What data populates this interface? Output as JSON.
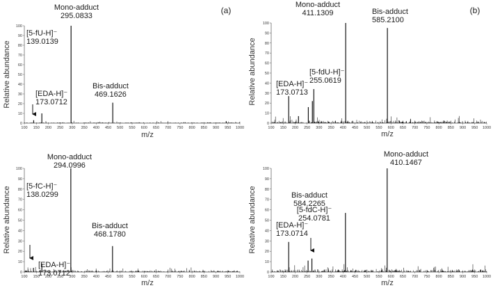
{
  "chart_data": [
    {
      "type": "line",
      "panel_label": "(a)",
      "ylabel": "Relative abundance",
      "xlabel": "m/z",
      "xlim": [
        100,
        1000
      ],
      "ylim": [
        0,
        100
      ],
      "x_ticks": [
        "100",
        "150",
        "200",
        "250",
        "300",
        "350",
        "400",
        "450",
        "500",
        "550",
        "600",
        "650",
        "700",
        "750",
        "800",
        "850",
        "900",
        "950",
        "1000"
      ],
      "y_ticks": [
        "0",
        "10",
        "20",
        "30",
        "40",
        "50",
        "60",
        "70",
        "80",
        "90",
        "100"
      ],
      "peaks": [
        {
          "x": 139.0,
          "y": 3
        },
        {
          "x": 173.1,
          "y": 10
        },
        {
          "x": 295.1,
          "y": 100
        },
        {
          "x": 469.2,
          "y": 21
        },
        {
          "x": 943.0,
          "y": 2
        }
      ],
      "annotations": [
        {
          "name": "Mono-adduct",
          "value": "295.0833"
        },
        {
          "name": "Bis-adduct",
          "value": "469.1626"
        },
        {
          "name": "[5-fU-H]⁻",
          "value": "139.0139"
        },
        {
          "name": "[EDA-H]⁻",
          "value": "173.0712"
        }
      ]
    },
    {
      "type": "line",
      "panel_label": "(b)",
      "ylabel": "Relative abundance",
      "xlabel": "m/z",
      "xlim": [
        100,
        1000
      ],
      "ylim": [
        0,
        100
      ],
      "x_ticks": [
        "100",
        "150",
        "200",
        "250",
        "300",
        "350",
        "400",
        "450",
        "500",
        "550",
        "600",
        "650",
        "700",
        "750",
        "800",
        "850",
        "900",
        "950",
        "1000"
      ],
      "y_ticks": [
        "0",
        "10",
        "20",
        "30",
        "40",
        "50",
        "60",
        "70",
        "80",
        "90",
        "100"
      ],
      "peaks": [
        {
          "x": 173.1,
          "y": 27
        },
        {
          "x": 214.0,
          "y": 7
        },
        {
          "x": 255.1,
          "y": 16
        },
        {
          "x": 272.0,
          "y": 22
        },
        {
          "x": 278.0,
          "y": 34
        },
        {
          "x": 411.1,
          "y": 100
        },
        {
          "x": 585.2,
          "y": 95
        }
      ],
      "annotations": [
        {
          "name": "Mono-adduct",
          "value": "411.1309"
        },
        {
          "name": "Bis-adduct",
          "value": "585.2100"
        },
        {
          "name": "[EDA-H]⁻",
          "value": "173.0713"
        },
        {
          "name": "[5-fdU-H]⁻",
          "value": "255.0619"
        }
      ]
    },
    {
      "type": "line",
      "panel_label": "",
      "ylabel": "Relative abundance",
      "xlabel": "m/z",
      "xlim": [
        100,
        1000
      ],
      "ylim": [
        0,
        100
      ],
      "x_ticks": [
        "100",
        "150",
        "200",
        "250",
        "300",
        "350",
        "400",
        "450",
        "500",
        "550",
        "600",
        "650",
        "700",
        "750",
        "800",
        "850",
        "900",
        "950",
        "1000"
      ],
      "y_ticks": [
        "0",
        "10",
        "20",
        "30",
        "40",
        "50",
        "60",
        "70",
        "80",
        "90",
        "100"
      ],
      "peaks": [
        {
          "x": 138.0,
          "y": 4
        },
        {
          "x": 173.1,
          "y": 8
        },
        {
          "x": 294.1,
          "y": 100
        },
        {
          "x": 468.2,
          "y": 25
        }
      ],
      "annotations": [
        {
          "name": "Mono-adduct",
          "value": "294.0996"
        },
        {
          "name": "Bis-adduct",
          "value": "468.1780"
        },
        {
          "name": "[5-fC-H]⁻",
          "value": "138.0299"
        },
        {
          "name": "[EDA-H]⁻",
          "value": "173.0712"
        }
      ]
    },
    {
      "type": "line",
      "panel_label": "",
      "ylabel": "Relative abundance",
      "xlabel": "m/z",
      "xlim": [
        100,
        1000
      ],
      "ylim": [
        0,
        100
      ],
      "x_ticks": [
        "100",
        "150",
        "200",
        "250",
        "300",
        "350",
        "400",
        "450",
        "500",
        "550",
        "600",
        "650",
        "700",
        "750",
        "800",
        "850",
        "900",
        "950",
        "1000"
      ],
      "y_ticks": [
        "0",
        "10",
        "20",
        "30",
        "40",
        "50",
        "60",
        "70",
        "80",
        "90",
        "100"
      ],
      "peaks": [
        {
          "x": 173.1,
          "y": 29
        },
        {
          "x": 254.1,
          "y": 11
        },
        {
          "x": 270.0,
          "y": 13
        },
        {
          "x": 410.1,
          "y": 57
        },
        {
          "x": 584.2,
          "y": 100
        }
      ],
      "annotations": [
        {
          "name": "Mono-adduct",
          "value": "410.1467"
        },
        {
          "name": "Bis-adduct",
          "value": "584.2265"
        },
        {
          "name": "[5-fdC-H]⁻",
          "value": "254.0781"
        },
        {
          "name": "[EDA-H]⁻",
          "value": "173.0714"
        }
      ]
    }
  ]
}
